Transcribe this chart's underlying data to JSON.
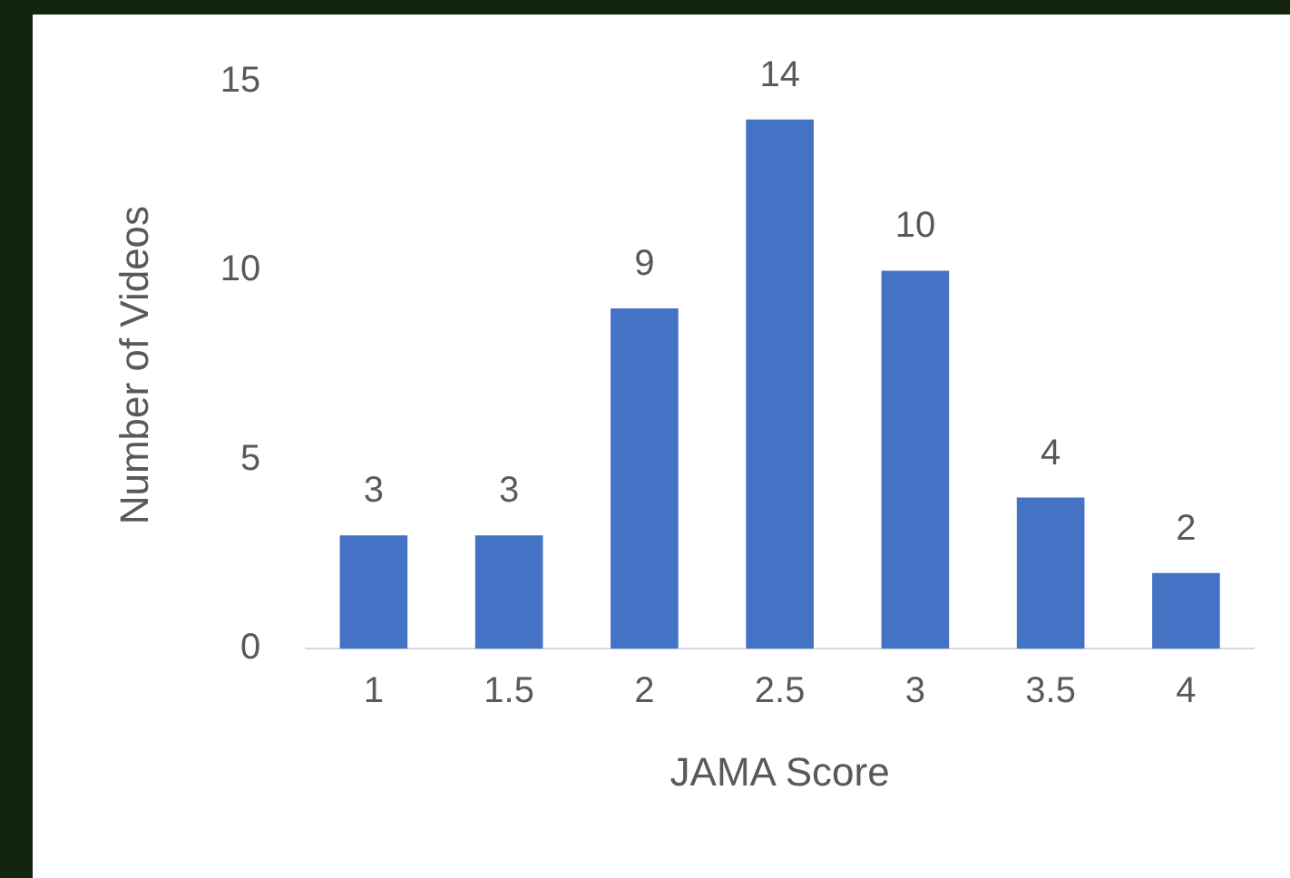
{
  "chart_data": {
    "type": "bar",
    "xlabel": "JAMA Score",
    "ylabel": "Number of Videos",
    "categories": [
      "1",
      "1.5",
      "2",
      "2.5",
      "3",
      "3.5",
      "4"
    ],
    "values": [
      3,
      3,
      9,
      14,
      10,
      4,
      2
    ],
    "color": "#4472c4",
    "ylim": [
      0,
      15
    ],
    "yticks": [
      0,
      5,
      10,
      15
    ],
    "grid": false,
    "legend": false,
    "data_labels": true
  }
}
